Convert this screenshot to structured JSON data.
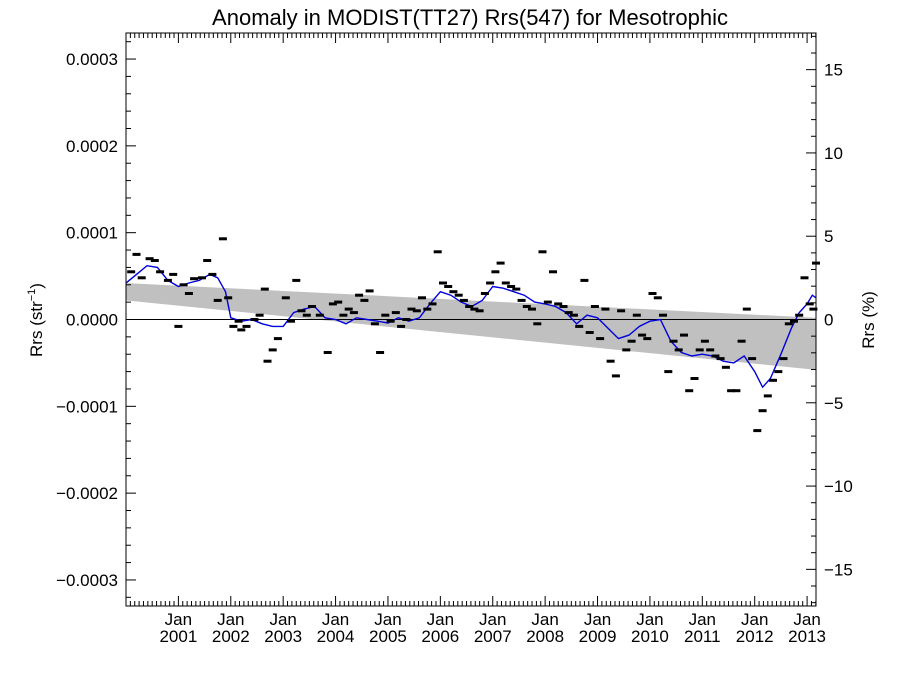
{
  "chart_data": {
    "type": "scatter",
    "title": "Anomaly in MODIST(TT27) Rrs(547) for Mesotrophic",
    "ylabel_left": "Rrs (str",
    "ylabel_left_sup": "−1",
    "ylabel_left_close": ")",
    "ylabel_right": "Rrs (%)",
    "x_range": [
      2000.0,
      2013.17
    ],
    "ylim_left": [
      -0.00033,
      0.00033
    ],
    "ylim_right": [
      -17.2,
      17.2
    ],
    "left_ticks": [
      {
        "value": 0.0003,
        "label": "0.0003"
      },
      {
        "value": 0.0002,
        "label": "0.0002"
      },
      {
        "value": 0.0001,
        "label": "0.0001"
      },
      {
        "value": 0.0,
        "label": "0.0000"
      },
      {
        "value": -0.0001,
        "label": "−0.0001"
      },
      {
        "value": -0.0002,
        "label": "−0.0002"
      },
      {
        "value": -0.0003,
        "label": "−0.0003"
      }
    ],
    "right_ticks": [
      {
        "value": 15,
        "label": "15"
      },
      {
        "value": 10,
        "label": "10"
      },
      {
        "value": 5,
        "label": "5"
      },
      {
        "value": 0,
        "label": "0"
      },
      {
        "value": -5,
        "label": "−5"
      },
      {
        "value": -10,
        "label": "−10"
      },
      {
        "value": -15,
        "label": "−15"
      }
    ],
    "x_ticks": [
      {
        "value": 2001,
        "month": "Jan",
        "year": "2001"
      },
      {
        "value": 2002,
        "month": "Jan",
        "year": "2002"
      },
      {
        "value": 2003,
        "month": "Jan",
        "year": "2003"
      },
      {
        "value": 2004,
        "month": "Jan",
        "year": "2004"
      },
      {
        "value": 2005,
        "month": "Jan",
        "year": "2005"
      },
      {
        "value": 2006,
        "month": "Jan",
        "year": "2006"
      },
      {
        "value": 2007,
        "month": "Jan",
        "year": "2007"
      },
      {
        "value": 2008,
        "month": "Jan",
        "year": "2008"
      },
      {
        "value": 2009,
        "month": "Jan",
        "year": "2009"
      },
      {
        "value": 2010,
        "month": "Jan",
        "year": "2010"
      },
      {
        "value": 2011,
        "month": "Jan",
        "year": "2011"
      },
      {
        "value": 2012,
        "month": "Jan",
        "year": "2012"
      },
      {
        "value": 2013,
        "month": "Jan",
        "year": "2013"
      }
    ],
    "trend_band": {
      "upper": [
        [
          2000.0,
          4.2e-05
        ],
        [
          2013.17,
          2e-06
        ]
      ],
      "lower": [
        [
          2000.0,
          2.2e-05
        ],
        [
          2013.17,
          -5.8e-05
        ]
      ],
      "color": "#c0c0c0"
    },
    "zero_line": 0.0,
    "points_color": "#000000",
    "points": [
      [
        2000.1,
        5.5e-05
      ],
      [
        2000.2,
        7.5e-05
      ],
      [
        2000.3,
        4.8e-05
      ],
      [
        2000.45,
        7e-05
      ],
      [
        2000.55,
        6.8e-05
      ],
      [
        2000.65,
        5.5e-05
      ],
      [
        2000.8,
        4.5e-05
      ],
      [
        2000.9,
        5.2e-05
      ],
      [
        2001.0,
        -8e-06
      ],
      [
        2001.1,
        4e-05
      ],
      [
        2001.2,
        3e-05
      ],
      [
        2001.3,
        4.7e-05
      ],
      [
        2001.45,
        4.8e-05
      ],
      [
        2001.55,
        6.8e-05
      ],
      [
        2001.65,
        5.2e-05
      ],
      [
        2001.75,
        2.2e-05
      ],
      [
        2001.85,
        9.3e-05
      ],
      [
        2001.95,
        2.5e-05
      ],
      [
        2002.05,
        -8e-06
      ],
      [
        2002.15,
        -2e-06
      ],
      [
        2002.2,
        -1.2e-05
      ],
      [
        2002.3,
        -8e-06
      ],
      [
        2002.45,
        0.0
      ],
      [
        2002.55,
        5e-06
      ],
      [
        2002.65,
        3.5e-05
      ],
      [
        2002.7,
        -4.8e-05
      ],
      [
        2002.8,
        -3.5e-05
      ],
      [
        2002.9,
        -2.2e-05
      ],
      [
        2003.05,
        2.5e-05
      ],
      [
        2003.15,
        -2e-06
      ],
      [
        2003.25,
        4.5e-05
      ],
      [
        2003.35,
        1e-05
      ],
      [
        2003.45,
        5e-06
      ],
      [
        2003.55,
        1.5e-05
      ],
      [
        2003.7,
        5e-06
      ],
      [
        2003.85,
        -3.8e-05
      ],
      [
        2003.95,
        1.8e-05
      ],
      [
        2004.05,
        2e-05
      ],
      [
        2004.15,
        5e-06
      ],
      [
        2004.25,
        1.2e-05
      ],
      [
        2004.35,
        8e-06
      ],
      [
        2004.45,
        2.8e-05
      ],
      [
        2004.55,
        2.2e-05
      ],
      [
        2004.65,
        3.3e-05
      ],
      [
        2004.75,
        -5e-06
      ],
      [
        2004.85,
        -3.8e-05
      ],
      [
        2004.95,
        5e-06
      ],
      [
        2005.05,
        -2e-06
      ],
      [
        2005.15,
        8e-06
      ],
      [
        2005.25,
        -8e-06
      ],
      [
        2005.35,
        0.0
      ],
      [
        2005.45,
        1.2e-05
      ],
      [
        2005.55,
        1e-05
      ],
      [
        2005.65,
        2.5e-05
      ],
      [
        2005.75,
        1.2e-05
      ],
      [
        2005.85,
        1.8e-05
      ],
      [
        2005.95,
        7.8e-05
      ],
      [
        2006.05,
        4.2e-05
      ],
      [
        2006.15,
        3.8e-05
      ],
      [
        2006.25,
        3.2e-05
      ],
      [
        2006.35,
        2.8e-05
      ],
      [
        2006.45,
        2.2e-05
      ],
      [
        2006.55,
        1.5e-05
      ],
      [
        2006.65,
        1.2e-05
      ],
      [
        2006.75,
        1e-05
      ],
      [
        2006.85,
        3e-05
      ],
      [
        2006.95,
        4.2e-05
      ],
      [
        2007.05,
        5.5e-05
      ],
      [
        2007.15,
        6.5e-05
      ],
      [
        2007.25,
        4.2e-05
      ],
      [
        2007.35,
        3.8e-05
      ],
      [
        2007.45,
        3.5e-05
      ],
      [
        2007.55,
        2.2e-05
      ],
      [
        2007.65,
        1.5e-05
      ],
      [
        2007.75,
        1.2e-05
      ],
      [
        2007.85,
        -5e-06
      ],
      [
        2007.95,
        7.8e-05
      ],
      [
        2008.05,
        2e-05
      ],
      [
        2008.15,
        5.5e-05
      ],
      [
        2008.25,
        1.8e-05
      ],
      [
        2008.35,
        1.5e-05
      ],
      [
        2008.45,
        8e-06
      ],
      [
        2008.55,
        5e-06
      ],
      [
        2008.65,
        -8e-06
      ],
      [
        2008.75,
        4.5e-05
      ],
      [
        2008.85,
        -1.5e-05
      ],
      [
        2008.95,
        1.5e-05
      ],
      [
        2009.05,
        -2.2e-05
      ],
      [
        2009.15,
        1.2e-05
      ],
      [
        2009.25,
        -4.8e-05
      ],
      [
        2009.35,
        -6.5e-05
      ],
      [
        2009.45,
        1e-05
      ],
      [
        2009.55,
        -3.5e-05
      ],
      [
        2009.65,
        -2.5e-05
      ],
      [
        2009.75,
        5e-06
      ],
      [
        2009.85,
        -1.8e-05
      ],
      [
        2009.95,
        -2.2e-05
      ],
      [
        2010.05,
        3e-05
      ],
      [
        2010.15,
        2.5e-05
      ],
      [
        2010.25,
        5e-06
      ],
      [
        2010.35,
        -6e-05
      ],
      [
        2010.45,
        -2.5e-05
      ],
      [
        2010.55,
        -3.5e-05
      ],
      [
        2010.65,
        -1.8e-05
      ],
      [
        2010.75,
        -8.2e-05
      ],
      [
        2010.85,
        -6.8e-05
      ],
      [
        2010.95,
        -3.5e-05
      ],
      [
        2011.05,
        -2.5e-05
      ],
      [
        2011.15,
        -3.5e-05
      ],
      [
        2011.25,
        -4.2e-05
      ],
      [
        2011.35,
        -4.5e-05
      ],
      [
        2011.45,
        -5.5e-05
      ],
      [
        2011.55,
        -8.2e-05
      ],
      [
        2011.65,
        -8.2e-05
      ],
      [
        2011.75,
        -2.5e-05
      ],
      [
        2011.85,
        1.2e-05
      ],
      [
        2011.95,
        -4.5e-05
      ],
      [
        2012.05,
        -0.000128
      ],
      [
        2012.15,
        -0.000105
      ],
      [
        2012.25,
        -8.8e-05
      ],
      [
        2012.35,
        -7e-05
      ],
      [
        2012.45,
        -6e-05
      ],
      [
        2012.55,
        -4.5e-05
      ],
      [
        2012.65,
        -5e-06
      ],
      [
        2012.75,
        -2e-06
      ],
      [
        2012.85,
        5e-06
      ],
      [
        2012.95,
        4.8e-05
      ],
      [
        2013.05,
        1.8e-05
      ],
      [
        2013.12,
        1.2e-05
      ],
      [
        2013.17,
        6.5e-05
      ]
    ],
    "smooth_color": "#0000dd",
    "smooth_line": [
      [
        2000.0,
        4.2e-05
      ],
      [
        2000.2,
        5.2e-05
      ],
      [
        2000.4,
        6.2e-05
      ],
      [
        2000.6,
        6e-05
      ],
      [
        2000.8,
        4.5e-05
      ],
      [
        2001.0,
        3.8e-05
      ],
      [
        2001.2,
        4.2e-05
      ],
      [
        2001.4,
        4.5e-05
      ],
      [
        2001.6,
        5.2e-05
      ],
      [
        2001.75,
        4.8e-05
      ],
      [
        2001.9,
        3.2e-05
      ],
      [
        2002.0,
        2e-06
      ],
      [
        2002.2,
        -2e-06
      ],
      [
        2002.4,
        0.0
      ],
      [
        2002.6,
        -5e-06
      ],
      [
        2002.8,
        -8e-06
      ],
      [
        2003.0,
        -8e-06
      ],
      [
        2003.2,
        8e-06
      ],
      [
        2003.4,
        1.2e-05
      ],
      [
        2003.6,
        1.5e-05
      ],
      [
        2003.8,
        2e-06
      ],
      [
        2004.0,
        0.0
      ],
      [
        2004.2,
        -5e-06
      ],
      [
        2004.4,
        2e-06
      ],
      [
        2004.6,
        0.0
      ],
      [
        2004.8,
        -2e-06
      ],
      [
        2005.0,
        -4e-06
      ],
      [
        2005.2,
        2e-06
      ],
      [
        2005.4,
        -2e-06
      ],
      [
        2005.6,
        2e-06
      ],
      [
        2005.8,
        1.8e-05
      ],
      [
        2006.0,
        3.2e-05
      ],
      [
        2006.2,
        2.8e-05
      ],
      [
        2006.4,
        2e-05
      ],
      [
        2006.6,
        1.5e-05
      ],
      [
        2006.8,
        2.2e-05
      ],
      [
        2007.0,
        3.8e-05
      ],
      [
        2007.2,
        3.6e-05
      ],
      [
        2007.4,
        3.2e-05
      ],
      [
        2007.6,
        2.8e-05
      ],
      [
        2007.8,
        2e-05
      ],
      [
        2008.0,
        1.8e-05
      ],
      [
        2008.2,
        1.5e-05
      ],
      [
        2008.4,
        8e-06
      ],
      [
        2008.6,
        -5e-06
      ],
      [
        2008.8,
        5e-06
      ],
      [
        2009.0,
        2e-06
      ],
      [
        2009.2,
        -1e-05
      ],
      [
        2009.4,
        -2.2e-05
      ],
      [
        2009.6,
        -1.8e-05
      ],
      [
        2009.8,
        -8e-06
      ],
      [
        2010.0,
        -2e-06
      ],
      [
        2010.2,
        0.0
      ],
      [
        2010.4,
        -2.5e-05
      ],
      [
        2010.6,
        -3.8e-05
      ],
      [
        2010.8,
        -4.2e-05
      ],
      [
        2011.0,
        -4e-05
      ],
      [
        2011.2,
        -4.2e-05
      ],
      [
        2011.4,
        -4.8e-05
      ],
      [
        2011.6,
        -5e-05
      ],
      [
        2011.8,
        -4.2e-05
      ],
      [
        2012.0,
        -6e-05
      ],
      [
        2012.15,
        -7.8e-05
      ],
      [
        2012.3,
        -6.8e-05
      ],
      [
        2012.5,
        -4e-05
      ],
      [
        2012.7,
        -1e-05
      ],
      [
        2012.85,
        8e-06
      ],
      [
        2013.0,
        1.8e-05
      ],
      [
        2013.1,
        2.8e-05
      ],
      [
        2013.17,
        2.5e-05
      ]
    ]
  }
}
